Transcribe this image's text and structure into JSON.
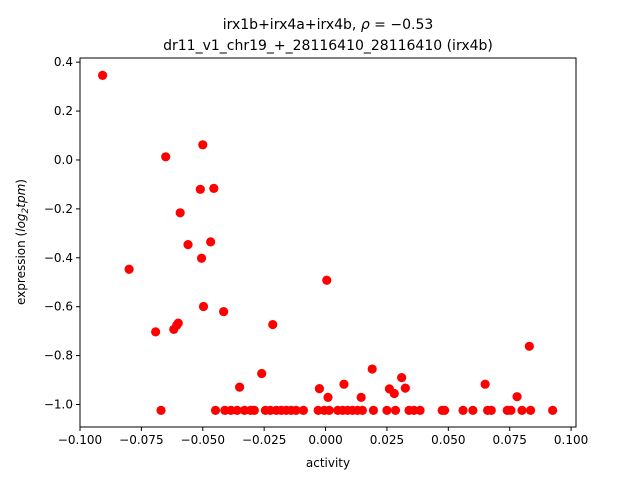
{
  "chart_data": {
    "type": "scatter",
    "title_line1_prefix": "irx1b+irx4a+irx4b, ",
    "title_rho_symbol": "ρ",
    "title_rho_value": " = −0.53",
    "title_line2": "dr11_v1_chr19_+_28116410_28116410 (irx4b)",
    "xlabel": "activity",
    "ylabel_prefix": "expression (",
    "ylabel_log": "log",
    "ylabel_sub": "2",
    "ylabel_tpm": "tpm",
    "ylabel_suffix": ")",
    "xlim": [
      -0.1,
      0.102
    ],
    "ylim": [
      -1.092,
      0.417
    ],
    "x_ticks": [
      -0.1,
      -0.075,
      -0.05,
      -0.025,
      0.0,
      0.025,
      0.05,
      0.075,
      0.1
    ],
    "x_tick_labels": [
      "−0.100",
      "−0.075",
      "−0.050",
      "−0.025",
      "0.000",
      "0.025",
      "0.050",
      "0.075",
      "0.100"
    ],
    "y_ticks": [
      -1.0,
      -0.8,
      -0.6,
      -0.4,
      -0.2,
      0.0,
      0.2,
      0.4
    ],
    "y_tick_labels": [
      "−1.0",
      "−0.8",
      "−0.6",
      "−0.4",
      "−0.2",
      "0.0",
      "0.2",
      "0.4"
    ],
    "grid": false,
    "marker_color": "#ff0000",
    "points": [
      {
        "x": -0.0908,
        "y": 0.346
      },
      {
        "x": -0.08,
        "y": -0.447
      },
      {
        "x": -0.0692,
        "y": -0.703
      },
      {
        "x": -0.067,
        "y": -1.024
      },
      {
        "x": -0.0651,
        "y": 0.013
      },
      {
        "x": -0.0618,
        "y": -0.693
      },
      {
        "x": -0.0606,
        "y": -0.676
      },
      {
        "x": -0.06,
        "y": -0.667
      },
      {
        "x": -0.0592,
        "y": -0.216
      },
      {
        "x": -0.056,
        "y": -0.346
      },
      {
        "x": -0.051,
        "y": -0.12
      },
      {
        "x": -0.0505,
        "y": -0.402
      },
      {
        "x": -0.05,
        "y": 0.062
      },
      {
        "x": -0.0497,
        "y": -0.599
      },
      {
        "x": -0.0468,
        "y": -0.335
      },
      {
        "x": -0.0455,
        "y": -0.116
      },
      {
        "x": -0.0448,
        "y": -1.024
      },
      {
        "x": -0.0415,
        "y": -0.62
      },
      {
        "x": -0.041,
        "y": -1.024
      },
      {
        "x": -0.0385,
        "y": -1.024
      },
      {
        "x": -0.036,
        "y": -1.024
      },
      {
        "x": -0.035,
        "y": -0.929
      },
      {
        "x": -0.033,
        "y": -1.024
      },
      {
        "x": -0.0305,
        "y": -1.024
      },
      {
        "x": -0.029,
        "y": -1.024
      },
      {
        "x": -0.026,
        "y": -0.873
      },
      {
        "x": -0.0245,
        "y": -1.024
      },
      {
        "x": -0.0225,
        "y": -1.024
      },
      {
        "x": -0.0215,
        "y": -0.673
      },
      {
        "x": -0.02,
        "y": -1.024
      },
      {
        "x": -0.018,
        "y": -1.024
      },
      {
        "x": -0.016,
        "y": -1.024
      },
      {
        "x": -0.014,
        "y": -1.024
      },
      {
        "x": -0.012,
        "y": -1.024
      },
      {
        "x": -0.009,
        "y": -1.024
      },
      {
        "x": -0.003,
        "y": -1.024
      },
      {
        "x": -0.0025,
        "y": -0.935
      },
      {
        "x": -0.0005,
        "y": -1.024
      },
      {
        "x": 0.0005,
        "y": -0.492
      },
      {
        "x": 0.001,
        "y": -0.971
      },
      {
        "x": 0.0015,
        "y": -1.024
      },
      {
        "x": 0.005,
        "y": -1.024
      },
      {
        "x": 0.007,
        "y": -1.024
      },
      {
        "x": 0.0075,
        "y": -0.917
      },
      {
        "x": 0.009,
        "y": -1.024
      },
      {
        "x": 0.011,
        "y": -1.024
      },
      {
        "x": 0.013,
        "y": -1.024
      },
      {
        "x": 0.0145,
        "y": -0.971
      },
      {
        "x": 0.015,
        "y": -1.024
      },
      {
        "x": 0.019,
        "y": -0.855
      },
      {
        "x": 0.0195,
        "y": -1.024
      },
      {
        "x": 0.025,
        "y": -1.024
      },
      {
        "x": 0.026,
        "y": -0.936
      },
      {
        "x": 0.028,
        "y": -0.955
      },
      {
        "x": 0.0285,
        "y": -1.024
      },
      {
        "x": 0.031,
        "y": -0.89
      },
      {
        "x": 0.0325,
        "y": -0.933
      },
      {
        "x": 0.034,
        "y": -1.024
      },
      {
        "x": 0.036,
        "y": -1.024
      },
      {
        "x": 0.0385,
        "y": -1.024
      },
      {
        "x": 0.0475,
        "y": -1.024
      },
      {
        "x": 0.0485,
        "y": -1.024
      },
      {
        "x": 0.056,
        "y": -1.024
      },
      {
        "x": 0.06,
        "y": -1.024
      },
      {
        "x": 0.065,
        "y": -0.917
      },
      {
        "x": 0.066,
        "y": -1.024
      },
      {
        "x": 0.0675,
        "y": -1.024
      },
      {
        "x": 0.074,
        "y": -1.024
      },
      {
        "x": 0.0755,
        "y": -1.024
      },
      {
        "x": 0.078,
        "y": -0.968
      },
      {
        "x": 0.08,
        "y": -1.024
      },
      {
        "x": 0.083,
        "y": -0.762
      },
      {
        "x": 0.0835,
        "y": -1.024
      },
      {
        "x": 0.0925,
        "y": -1.024
      }
    ]
  }
}
